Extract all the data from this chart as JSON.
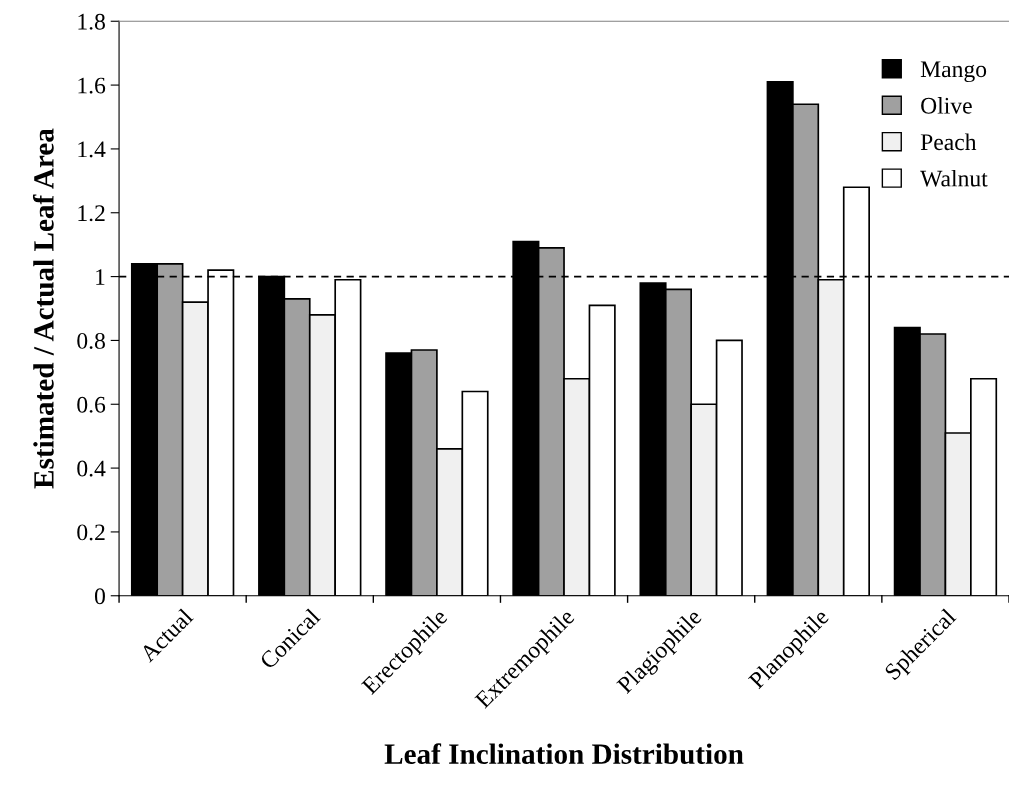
{
  "chart_data": {
    "type": "bar",
    "xlabel": "Leaf Inclination Distribution",
    "ylabel": "Estimated / Actual Leaf Area",
    "categories": [
      "Actual",
      "Conical",
      "Erectophile",
      "Extremophile",
      "Plagiophile",
      "Planophile",
      "Spherical"
    ],
    "series": [
      {
        "name": "Mango",
        "color": "#000000",
        "values": [
          1.04,
          1.0,
          0.76,
          1.11,
          0.98,
          1.61,
          0.84
        ]
      },
      {
        "name": "Olive",
        "color": "#a0a0a0",
        "values": [
          1.04,
          0.93,
          0.77,
          1.09,
          0.96,
          1.54,
          0.82
        ]
      },
      {
        "name": "Peach",
        "color": "#f0f0f0",
        "values": [
          0.92,
          0.88,
          0.46,
          0.68,
          0.6,
          0.99,
          0.51
        ]
      },
      {
        "name": "Walnut",
        "color": "#ffffff",
        "values": [
          1.02,
          0.99,
          0.64,
          0.91,
          0.8,
          1.28,
          0.68
        ]
      }
    ],
    "ylim": [
      0,
      1.8
    ],
    "yticks": [
      0,
      0.2,
      0.4,
      0.6,
      0.8,
      1,
      1.2,
      1.4,
      1.6,
      1.8
    ],
    "ref_lines": [
      {
        "axis": "y",
        "value": 1,
        "color": "#000000",
        "line_style": "dashed"
      }
    ],
    "legend": "top right",
    "grid": false
  }
}
